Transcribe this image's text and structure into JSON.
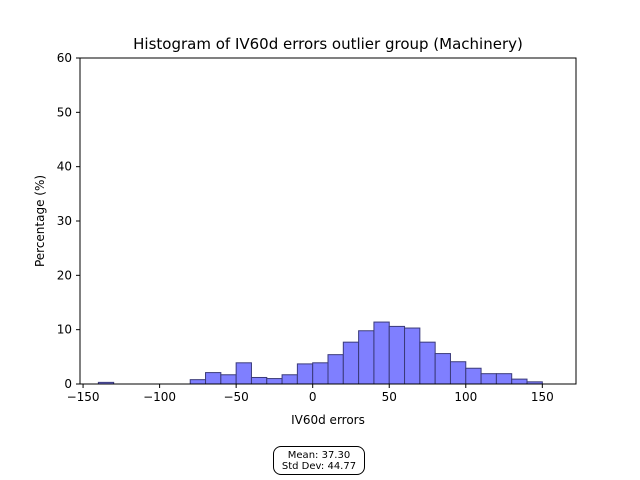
{
  "chart_data": {
    "type": "bar",
    "title": "Histogram of IV60d errors outlier group (Machinery)",
    "xlabel": "IV60d errors",
    "ylabel": "Percentage (%)",
    "xlim": [
      -152,
      172
    ],
    "ylim": [
      0,
      60
    ],
    "xticks": [
      -150,
      -100,
      -50,
      0,
      50,
      100,
      150
    ],
    "yticks": [
      0,
      10,
      20,
      30,
      40,
      50,
      60
    ],
    "bin_width": 10,
    "bin_left_edges": [
      -140,
      -130,
      -120,
      -110,
      -100,
      -90,
      -80,
      -70,
      -60,
      -50,
      -40,
      -30,
      -20,
      -10,
      0,
      10,
      20,
      30,
      40,
      50,
      60,
      70,
      80,
      90,
      100,
      110,
      120,
      130,
      140
    ],
    "values": [
      0.3,
      0.0,
      0.0,
      0.0,
      0.0,
      0.0,
      0.8,
      2.1,
      1.7,
      3.9,
      1.2,
      1.0,
      1.7,
      3.7,
      3.9,
      5.4,
      7.7,
      9.8,
      11.4,
      10.6,
      10.3,
      7.7,
      5.6,
      4.1,
      2.9,
      1.9,
      1.9,
      0.9,
      0.4
    ],
    "bar_color": "#7f7fff",
    "edge_color": "#3a3a7a",
    "grid": false
  },
  "stats": {
    "mean": "Mean: 37.30",
    "std": "Std Dev: 44.77"
  }
}
